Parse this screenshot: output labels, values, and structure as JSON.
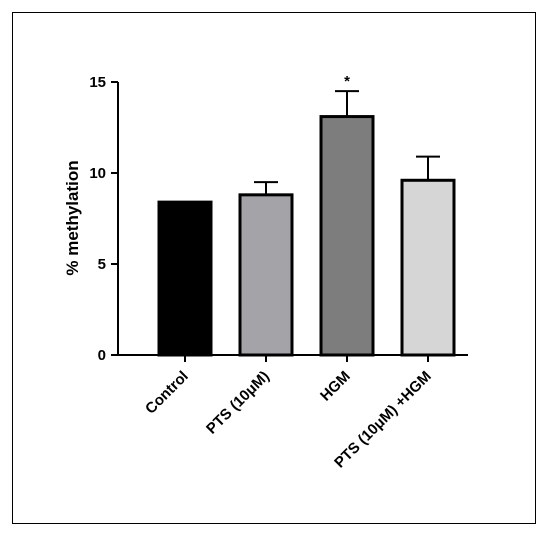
{
  "chart_data": {
    "type": "bar",
    "title": "",
    "xlabel": "",
    "ylabel": "% methylation",
    "ylim": [
      0,
      15
    ],
    "yticks": [
      "0",
      "5",
      "10",
      "15"
    ],
    "categories": [
      "Control",
      "PTS (10μM)",
      "HGM",
      "PTS (10μM) +HGM"
    ],
    "values": [
      8.4,
      8.8,
      13.1,
      9.6
    ],
    "errors": [
      0,
      0.7,
      1.4,
      1.3
    ],
    "significance": [
      "",
      "",
      "*",
      ""
    ],
    "bar_colors": [
      "#000000",
      "#a3a3a8",
      "#7d7d7d",
      "#d6d6d6"
    ],
    "grid": false,
    "legend": "none"
  }
}
